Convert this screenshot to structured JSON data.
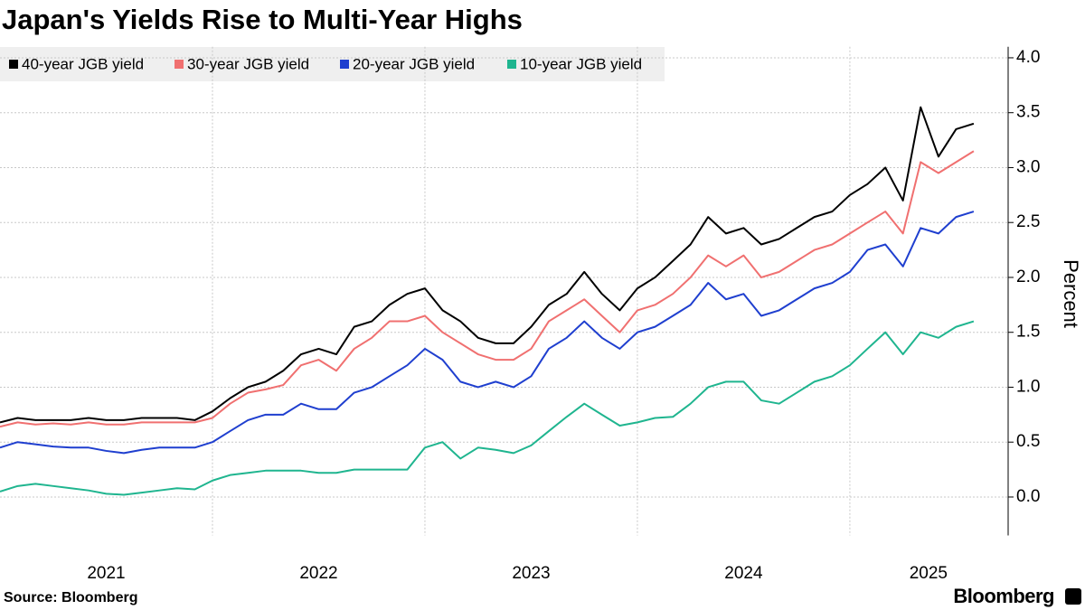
{
  "chart_data": {
    "type": "line",
    "title": "Japan's Yields Rise to Multi-Year Highs",
    "y_label": "Percent",
    "source": "Source: Bloomberg",
    "brand": "Bloomberg",
    "legend": "top-left",
    "grid": true,
    "x": [
      2021,
      2021.083,
      2021.167,
      2021.25,
      2021.333,
      2021.417,
      2021.5,
      2021.583,
      2021.667,
      2021.75,
      2021.833,
      2021.917,
      2022,
      2022.083,
      2022.167,
      2022.25,
      2022.333,
      2022.417,
      2022.5,
      2022.583,
      2022.667,
      2022.75,
      2022.833,
      2022.917,
      2023,
      2023.083,
      2023.167,
      2023.25,
      2023.333,
      2023.417,
      2023.5,
      2023.583,
      2023.667,
      2023.75,
      2023.833,
      2023.917,
      2024,
      2024.083,
      2024.167,
      2024.25,
      2024.333,
      2024.417,
      2024.5,
      2024.583,
      2024.667,
      2024.75,
      2024.833,
      2024.917,
      2025,
      2025.083,
      2025.167,
      2025.25,
      2025.333,
      2025.417,
      2025.5,
      2025.583
    ],
    "xlim": [
      2021,
      2025.745
    ],
    "xticks": [
      {
        "value": 2021.5,
        "label": "2021"
      },
      {
        "value": 2022.5,
        "label": "2022"
      },
      {
        "value": 2023.5,
        "label": "2023"
      },
      {
        "value": 2024.5,
        "label": "2024"
      },
      {
        "value": 2025.37,
        "label": "2025"
      }
    ],
    "ylim": [
      -0.35,
      4.1
    ],
    "yticks": [
      {
        "value": 0,
        "label": "0.0"
      },
      0.5,
      {
        "value": 1,
        "label": "1.0"
      },
      1.5,
      {
        "value": 2,
        "label": "2.0"
      },
      2.5,
      {
        "value": 3,
        "label": "3.0"
      },
      3.5,
      {
        "value": 4,
        "label": "4.0"
      }
    ],
    "series": [
      {
        "name": "40-year JGB yield",
        "color": "#000000",
        "values": [
          0.68,
          0.72,
          0.7,
          0.7,
          0.7,
          0.72,
          0.7,
          0.7,
          0.72,
          0.72,
          0.72,
          0.7,
          0.78,
          0.9,
          1.0,
          1.05,
          1.15,
          1.3,
          1.35,
          1.3,
          1.55,
          1.6,
          1.75,
          1.85,
          1.9,
          1.7,
          1.6,
          1.45,
          1.4,
          1.4,
          1.55,
          1.75,
          1.85,
          2.05,
          1.85,
          1.7,
          1.9,
          2.0,
          2.15,
          2.3,
          2.55,
          2.4,
          2.45,
          2.3,
          2.35,
          2.45,
          2.55,
          2.6,
          2.75,
          2.85,
          3.0,
          2.7,
          3.55,
          3.1,
          3.35,
          3.4
        ]
      },
      {
        "name": "30-year JGB yield",
        "color": "#f07070",
        "values": [
          0.64,
          0.68,
          0.66,
          0.67,
          0.66,
          0.68,
          0.66,
          0.66,
          0.68,
          0.68,
          0.68,
          0.68,
          0.72,
          0.85,
          0.95,
          0.98,
          1.02,
          1.2,
          1.25,
          1.15,
          1.35,
          1.45,
          1.6,
          1.6,
          1.65,
          1.5,
          1.4,
          1.3,
          1.25,
          1.25,
          1.35,
          1.6,
          1.7,
          1.8,
          1.65,
          1.5,
          1.7,
          1.75,
          1.85,
          2.0,
          2.2,
          2.1,
          2.2,
          2.0,
          2.05,
          2.15,
          2.25,
          2.3,
          2.4,
          2.5,
          2.6,
          2.4,
          3.05,
          2.95,
          3.05,
          3.15
        ]
      },
      {
        "name": "20-year JGB yield",
        "color": "#1f3fcf",
        "values": [
          0.45,
          0.5,
          0.48,
          0.46,
          0.45,
          0.45,
          0.42,
          0.4,
          0.43,
          0.45,
          0.45,
          0.45,
          0.5,
          0.6,
          0.7,
          0.75,
          0.75,
          0.85,
          0.8,
          0.8,
          0.95,
          1.0,
          1.1,
          1.2,
          1.35,
          1.25,
          1.05,
          1.0,
          1.05,
          1.0,
          1.1,
          1.35,
          1.45,
          1.6,
          1.45,
          1.35,
          1.5,
          1.55,
          1.65,
          1.75,
          1.95,
          1.8,
          1.85,
          1.65,
          1.7,
          1.8,
          1.9,
          1.95,
          2.05,
          2.25,
          2.3,
          2.1,
          2.45,
          2.4,
          2.55,
          2.6
        ]
      },
      {
        "name": "10-year JGB yield",
        "color": "#1fb58f",
        "values": [
          0.05,
          0.1,
          0.12,
          0.1,
          0.08,
          0.06,
          0.03,
          0.02,
          0.04,
          0.06,
          0.08,
          0.07,
          0.15,
          0.2,
          0.22,
          0.24,
          0.24,
          0.24,
          0.22,
          0.22,
          0.25,
          0.25,
          0.25,
          0.25,
          0.45,
          0.5,
          0.35,
          0.45,
          0.43,
          0.4,
          0.47,
          0.6,
          0.73,
          0.85,
          0.75,
          0.65,
          0.68,
          0.72,
          0.73,
          0.85,
          1.0,
          1.05,
          1.05,
          0.88,
          0.85,
          0.95,
          1.05,
          1.1,
          1.2,
          1.35,
          1.5,
          1.3,
          1.5,
          1.45,
          1.55,
          1.6
        ]
      }
    ]
  }
}
